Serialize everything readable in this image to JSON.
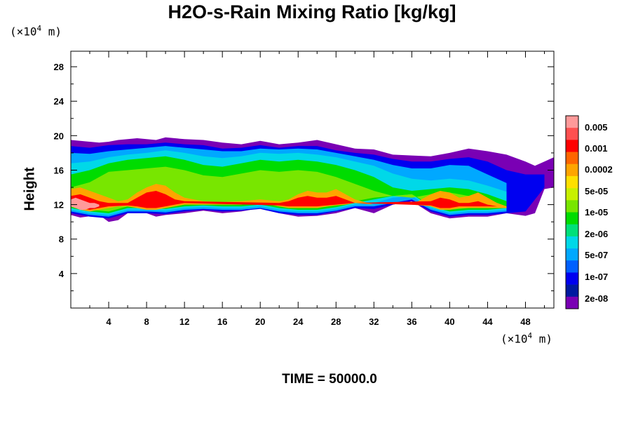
{
  "title": "H2O-s-Rain Mixing Ratio [kg/kg]",
  "x_unit": {
    "prefix": "(×10",
    "exp": "4",
    "suffix": " m)"
  },
  "y_unit": {
    "prefix": "(×10",
    "exp": "4",
    "suffix": " m)"
  },
  "ylabel": "Height",
  "time_label": "TIME = 50000.0",
  "colors": {
    "band0": "#ff9a9a",
    "band1": "#ff5050",
    "band2": "#ff0000",
    "band3": "#ff6600",
    "band4": "#ffa500",
    "band5": "#ffe000",
    "band6": "#c8f000",
    "band7": "#78e600",
    "band8": "#00dc00",
    "band9": "#00e07a",
    "band10": "#00d8e8",
    "band11": "#00a8ff",
    "band12": "#0060ff",
    "band13": "#0000f0",
    "band14": "#001aa0",
    "band15": "#7a00b4"
  },
  "chart_data": {
    "type": "heatmap",
    "title": "H2O-s-Rain Mixing Ratio [kg/kg]",
    "ylabel": "Height",
    "xlim": [
      0,
      51
    ],
    "ylim": [
      0,
      29.8
    ],
    "x_ticks": [
      4,
      8,
      12,
      16,
      20,
      24,
      28,
      32,
      36,
      40,
      44,
      48
    ],
    "y_ticks": [
      4,
      8,
      12,
      16,
      20,
      24,
      28
    ],
    "colorbar_labels": [
      "0.005",
      "0.001",
      "0.0002",
      "5e-05",
      "1e-05",
      "2e-06",
      "5e-07",
      "1e-07",
      "2e-08"
    ],
    "contours": [
      {
        "level": "2e-08",
        "x": [
          0,
          1,
          3,
          4,
          5,
          6,
          7,
          8,
          9,
          10,
          12,
          14,
          16,
          18,
          20,
          22,
          24,
          26,
          28,
          30,
          32,
          34,
          36,
          38,
          40,
          42,
          44,
          46,
          48,
          49,
          50,
          51
        ],
        "top": [
          19.5,
          19.4,
          19.2,
          19.3,
          19.5,
          19.6,
          19.7,
          19.6,
          19.5,
          19.8,
          19.6,
          19.5,
          19.2,
          19.0,
          19.4,
          19.0,
          19.2,
          19.5,
          19.0,
          18.5,
          18.4,
          17.8,
          17.7,
          17.6,
          18.0,
          18.5,
          18.2,
          17.8,
          17.0,
          16.5,
          17.0,
          17.5
        ],
        "bottom": [
          10.8,
          10.5,
          10.8,
          10.0,
          10.2,
          11.0,
          11.5,
          11.0,
          10.6,
          10.8,
          11.0,
          11.3,
          11.0,
          11.2,
          11.6,
          11.0,
          10.6,
          10.7,
          11.0,
          11.6,
          11.0,
          12.0,
          12.4,
          11.0,
          10.4,
          10.6,
          10.6,
          11.0,
          10.7,
          11.0,
          13.8,
          14.0
        ]
      },
      {
        "level": "1e-07",
        "x": [
          0,
          2,
          4,
          6,
          8,
          10,
          12,
          14,
          16,
          18,
          20,
          22,
          24,
          26,
          28,
          30,
          32,
          34,
          36,
          38,
          40,
          42,
          44,
          46,
          48,
          50
        ],
        "top": [
          18.8,
          18.6,
          18.9,
          19.0,
          19.0,
          19.2,
          19.0,
          18.9,
          18.5,
          18.6,
          18.9,
          18.6,
          18.8,
          18.8,
          18.3,
          18.0,
          17.8,
          17.3,
          17.0,
          17.0,
          17.3,
          17.5,
          17.0,
          16.0,
          15.5,
          15.5
        ],
        "bottom": [
          11.0,
          10.6,
          10.4,
          11.0,
          11.0,
          10.9,
          11.2,
          11.4,
          11.2,
          11.3,
          11.5,
          11.0,
          10.8,
          10.8,
          11.2,
          11.6,
          11.5,
          12.0,
          12.4,
          11.2,
          10.6,
          10.8,
          10.8,
          11.0,
          11.2,
          14.0
        ]
      },
      {
        "level": "5e-07",
        "x": [
          0,
          2,
          4,
          6,
          8,
          10,
          12,
          14,
          16,
          18,
          20,
          22,
          24,
          26,
          28,
          30,
          32,
          34,
          36,
          38,
          40,
          42,
          44,
          46
        ],
        "top": [
          18.0,
          17.9,
          18.2,
          18.4,
          18.6,
          18.8,
          18.6,
          18.4,
          18.2,
          18.2,
          18.5,
          18.4,
          18.5,
          18.4,
          18.0,
          17.6,
          17.2,
          16.6,
          16.2,
          16.2,
          16.6,
          16.5,
          15.5,
          14.5
        ],
        "bottom": [
          11.2,
          10.8,
          10.6,
          11.2,
          11.2,
          11.1,
          11.4,
          11.5,
          11.4,
          11.4,
          11.6,
          11.2,
          11.0,
          11.0,
          11.3,
          11.8,
          11.8,
          12.2,
          12.6,
          11.4,
          10.8,
          11.0,
          11.0,
          11.2
        ]
      },
      {
        "level": "2e-06",
        "x": [
          0,
          2,
          4,
          6,
          8,
          10,
          12,
          14,
          16,
          18,
          20,
          22,
          24,
          26,
          28,
          30,
          32,
          34,
          36,
          38,
          40,
          42,
          44,
          46
        ],
        "top": [
          16.8,
          17.0,
          17.5,
          17.8,
          18.0,
          18.3,
          18.0,
          17.6,
          17.4,
          17.6,
          18.0,
          17.9,
          18.0,
          17.8,
          17.5,
          17.0,
          16.5,
          15.6,
          15.0,
          14.8,
          15.0,
          14.8,
          14.2,
          13.5
        ],
        "bottom": [
          11.4,
          11.0,
          10.8,
          11.4,
          11.4,
          11.3,
          11.6,
          11.7,
          11.6,
          11.6,
          11.8,
          11.4,
          11.2,
          11.2,
          11.5,
          12.0,
          12.2,
          12.8,
          13.0,
          11.6,
          11.0,
          11.2,
          11.2,
          11.4
        ]
      },
      {
        "level": "1e-05",
        "x": [
          0,
          2,
          4,
          6,
          8,
          10,
          12,
          14,
          16,
          18,
          20,
          22,
          24,
          26,
          28,
          30,
          32,
          34,
          36,
          38,
          40,
          42,
          44,
          46
        ],
        "top": [
          15.5,
          16.0,
          16.8,
          17.2,
          17.4,
          17.6,
          17.2,
          16.6,
          16.4,
          16.8,
          17.2,
          17.0,
          17.2,
          17.0,
          16.6,
          16.0,
          15.2,
          14.0,
          13.6,
          13.8,
          14.0,
          13.8,
          13.2,
          12.4
        ],
        "bottom": [
          11.6,
          11.2,
          11.0,
          11.6,
          11.6,
          11.5,
          11.8,
          11.9,
          11.8,
          11.8,
          12.0,
          11.6,
          11.4,
          11.4,
          11.7,
          12.2,
          12.6,
          13.0,
          13.2,
          11.8,
          11.2,
          11.4,
          11.4,
          11.6
        ]
      },
      {
        "level": "5e-05",
        "x": [
          0,
          2,
          4,
          6,
          8,
          10,
          12,
          14,
          16,
          18,
          20,
          22,
          24,
          26,
          28,
          30,
          32,
          34,
          36,
          38,
          40,
          42,
          44,
          46
        ],
        "top": [
          14.0,
          14.6,
          15.8,
          16.0,
          16.2,
          16.4,
          16.0,
          15.4,
          15.2,
          15.6,
          16.0,
          15.8,
          16.0,
          15.8,
          15.2,
          14.4,
          13.6,
          13.0,
          12.8,
          13.2,
          13.4,
          13.0,
          12.6,
          11.8
        ],
        "bottom": [
          11.8,
          11.4,
          11.2,
          11.8,
          11.8,
          11.7,
          12.0,
          12.1,
          12.0,
          12.0,
          12.2,
          11.8,
          11.6,
          11.6,
          11.9,
          12.4,
          12.8,
          13.0,
          13.2,
          12.0,
          11.4,
          11.6,
          11.6,
          11.6
        ]
      },
      {
        "level": "0.0002",
        "x": [
          0,
          1,
          2,
          3,
          4,
          5,
          6,
          7,
          8,
          9,
          10,
          11,
          12,
          14,
          16,
          18,
          20,
          22,
          23,
          24,
          25,
          26,
          27,
          28,
          29,
          30,
          32,
          36,
          38,
          39,
          40,
          41,
          42,
          43,
          44,
          45,
          46
        ],
        "top": [
          13.8,
          14.0,
          13.6,
          13.2,
          12.8,
          12.4,
          12.6,
          13.4,
          14.0,
          14.4,
          14.2,
          13.4,
          12.8,
          12.4,
          12.3,
          12.4,
          12.6,
          12.4,
          12.6,
          13.2,
          13.6,
          13.4,
          13.4,
          13.8,
          13.2,
          12.6,
          12.0,
          12.0,
          13.2,
          13.6,
          13.4,
          12.8,
          13.0,
          13.4,
          12.8,
          12.2,
          11.8
        ],
        "bottom": [
          11.8,
          11.4,
          11.2,
          11.4,
          11.6,
          11.8,
          11.8,
          11.6,
          11.4,
          11.4,
          11.6,
          11.8,
          12.0,
          12.0,
          12.0,
          12.0,
          12.2,
          11.8,
          11.6,
          11.6,
          11.6,
          11.6,
          11.8,
          11.9,
          12.0,
          12.2,
          12.0,
          12.0,
          11.8,
          11.4,
          11.4,
          11.6,
          11.6,
          11.6,
          11.6,
          11.6,
          11.6
        ]
      },
      {
        "level": "0.001",
        "x": [
          0,
          1,
          2,
          3,
          4,
          6,
          7,
          8,
          9,
          10,
          11,
          12,
          22,
          23,
          24,
          25,
          26,
          27,
          28,
          29,
          30,
          38,
          39,
          40,
          41,
          42,
          43,
          44,
          45
        ],
        "top": [
          13.0,
          13.2,
          12.8,
          12.4,
          12.2,
          12.2,
          12.8,
          13.4,
          13.6,
          13.2,
          12.6,
          12.4,
          12.2,
          12.4,
          12.8,
          13.0,
          12.8,
          12.8,
          13.0,
          12.6,
          12.2,
          12.4,
          12.8,
          12.6,
          12.2,
          12.2,
          12.4,
          12.0,
          11.8
        ],
        "bottom": [
          11.9,
          11.6,
          11.4,
          11.6,
          11.8,
          11.9,
          11.8,
          11.6,
          11.6,
          11.8,
          12.0,
          12.2,
          11.9,
          11.8,
          11.8,
          11.8,
          11.8,
          11.9,
          12.0,
          12.1,
          12.2,
          11.9,
          11.6,
          11.6,
          11.8,
          11.8,
          11.8,
          11.8,
          11.8
        ]
      },
      {
        "level": "0.005",
        "x": [
          0,
          0.5,
          1,
          1.5,
          2,
          2.5,
          3
        ],
        "top": [
          12.6,
          12.8,
          12.6,
          12.4,
          12.2,
          12.2,
          12.0
        ],
        "bottom": [
          11.8,
          11.6,
          11.4,
          11.4,
          11.6,
          11.6,
          11.8
        ]
      }
    ]
  }
}
